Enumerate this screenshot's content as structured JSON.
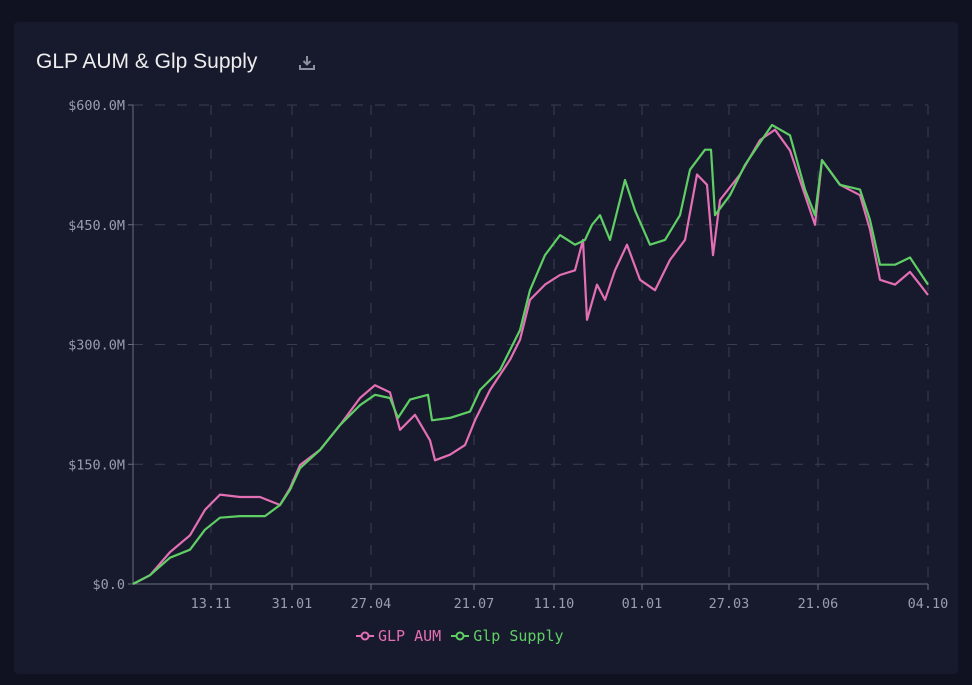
{
  "chart_data": {
    "type": "line",
    "title": "GLP AUM & Glp Supply",
    "xlabel": "",
    "ylabel": "",
    "x_unit": "days since start",
    "xlim": [
      0,
      795
    ],
    "ylim": [
      0,
      600
    ],
    "y_ticks": [
      {
        "v": 0,
        "label": "$0.0"
      },
      {
        "v": 150,
        "label": "$150.0M"
      },
      {
        "v": 300,
        "label": "$300.0M"
      },
      {
        "v": 450,
        "label": "$450.0M"
      },
      {
        "v": 600,
        "label": "$600.0M"
      }
    ],
    "x_ticks": [
      {
        "v": 78,
        "label": "13.11"
      },
      {
        "v": 159,
        "label": "31.01"
      },
      {
        "v": 238,
        "label": "27.04"
      },
      {
        "v": 341,
        "label": "21.07"
      },
      {
        "v": 421,
        "label": "11.10"
      },
      {
        "v": 509,
        "label": "01.01"
      },
      {
        "v": 596,
        "label": "27.03"
      },
      {
        "v": 685,
        "label": "21.06"
      },
      {
        "v": 795,
        "label": "04.10"
      }
    ],
    "grid": true,
    "legend_position": "bottom-center",
    "series": [
      {
        "name": "GLP AUM",
        "color": "#e36fb5",
        "x": [
          0,
          17,
          37,
          57,
          72,
          87,
          107,
          127,
          147,
          157,
          167,
          187,
          207,
          227,
          242,
          257,
          267,
          282,
          297,
          302,
          317,
          332,
          342,
          357,
          377,
          387,
          397,
          412,
          427,
          442,
          450,
          454,
          464,
          472,
          482,
          494,
          507,
          522,
          537,
          552,
          564,
          574,
          580,
          587,
          607,
          627,
          642,
          657,
          672,
          682,
          689,
          707,
          727,
          737,
          747,
          762,
          777,
          787,
          795
        ],
        "y": [
          0,
          11,
          40,
          61,
          93,
          112,
          109,
          109,
          99,
          120,
          149,
          168,
          199,
          233,
          249,
          240,
          193,
          212,
          180,
          155,
          162,
          174,
          205,
          243,
          281,
          306,
          356,
          375,
          387,
          393,
          431,
          331,
          375,
          356,
          393,
          425,
          381,
          368,
          406,
          431,
          513,
          500,
          412,
          481,
          513,
          556,
          569,
          543,
          487,
          450,
          531,
          500,
          487,
          444,
          381,
          375,
          391,
          375,
          362
        ]
      },
      {
        "name": "Glp Supply",
        "color": "#5fcf65",
        "x": [
          0,
          17,
          37,
          57,
          72,
          87,
          107,
          132,
          147,
          157,
          167,
          187,
          207,
          227,
          242,
          257,
          265,
          277,
          295,
          299,
          317,
          337,
          347,
          367,
          387,
          397,
          412,
          427,
          442,
          452,
          459,
          467,
          477,
          492,
          502,
          517,
          532,
          547,
          557,
          572,
          578,
          582,
          597,
          612,
          632,
          639,
          657,
          672,
          682,
          689,
          707,
          727,
          737,
          747,
          762,
          777,
          795
        ],
        "y": [
          0,
          11,
          33,
          43,
          68,
          83,
          85,
          85,
          99,
          118,
          145,
          168,
          199,
          224,
          237,
          233,
          208,
          231,
          237,
          205,
          208,
          216,
          243,
          268,
          318,
          368,
          412,
          437,
          425,
          431,
          450,
          462,
          431,
          506,
          468,
          425,
          431,
          462,
          519,
          544,
          544,
          462,
          487,
          525,
          562,
          575,
          562,
          494,
          462,
          531,
          500,
          494,
          456,
          400,
          400,
          409,
          375
        ]
      }
    ]
  }
}
